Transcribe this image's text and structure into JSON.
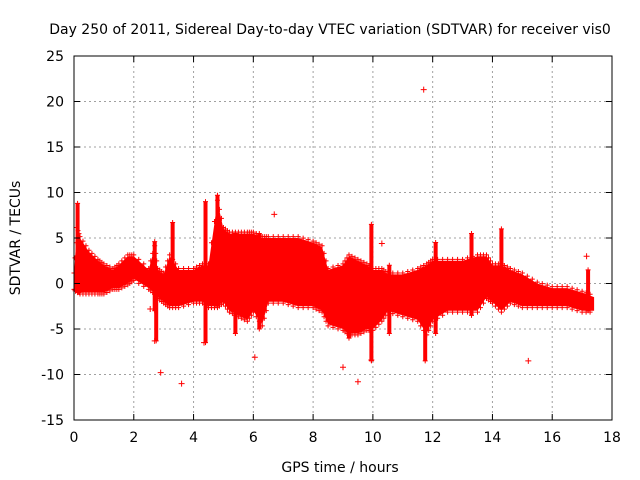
{
  "chart_data": {
    "type": "scatter",
    "title": "Day 250 of 2011, Sidereal Day-to-day VTEC variation (SDTVAR) for receiver vis0",
    "xlabel": "GPS time / hours",
    "ylabel": "SDTVAR / TECUs",
    "xlim": [
      0,
      18
    ],
    "ylim": [
      -15,
      25
    ],
    "x_ticks": [
      0,
      2,
      4,
      6,
      8,
      10,
      12,
      14,
      16,
      18
    ],
    "y_ticks": [
      -15,
      -10,
      -5,
      0,
      5,
      10,
      15,
      20,
      25
    ],
    "x_tick_labels": [
      "0",
      "2",
      "4",
      "6",
      "8",
      "10",
      "12",
      "14",
      "16",
      "18"
    ],
    "y_tick_labels": [
      "-15",
      "-10",
      "-5",
      "0",
      "5",
      "10",
      "15",
      "20",
      "25"
    ],
    "grid": true,
    "marker": "+",
    "color": "#ff0000",
    "band": {
      "x": [
        0.0,
        0.1,
        0.2,
        0.5,
        0.8,
        1.0,
        1.3,
        1.5,
        1.8,
        2.0,
        2.5,
        2.7,
        2.8,
        3.0,
        3.2,
        3.5,
        4.0,
        4.3,
        4.5,
        4.8,
        5.0,
        5.2,
        5.5,
        5.8,
        6.0,
        6.3,
        6.5,
        7.0,
        7.5,
        8.0,
        8.3,
        8.5,
        9.0,
        9.2,
        9.5,
        9.8,
        10.0,
        10.3,
        10.5,
        11.0,
        11.5,
        11.8,
        12.0,
        12.5,
        13.0,
        13.5,
        13.8,
        14.0,
        14.3,
        14.6,
        15.0,
        15.5,
        16.0,
        16.5,
        17.0,
        17.4
      ],
      "upper": [
        1.0,
        6.0,
        5.0,
        3.5,
        2.5,
        2.0,
        1.5,
        2.0,
        3.0,
        3.0,
        1.5,
        4.0,
        1.5,
        1.0,
        3.0,
        1.5,
        1.5,
        2.0,
        2.0,
        9.0,
        6.0,
        5.5,
        5.5,
        5.5,
        5.5,
        5.0,
        5.0,
        5.0,
        5.0,
        4.5,
        4.0,
        1.5,
        2.0,
        3.0,
        2.5,
        2.0,
        1.5,
        1.5,
        1.0,
        1.0,
        1.5,
        2.0,
        2.5,
        2.5,
        2.5,
        3.0,
        3.0,
        2.0,
        2.0,
        1.5,
        1.0,
        0.0,
        -0.5,
        -0.5,
        -1.0,
        -1.5
      ],
      "lower": [
        -0.5,
        -0.5,
        -1.0,
        -1.0,
        -1.0,
        -1.0,
        -0.5,
        -0.5,
        0.0,
        0.5,
        -0.5,
        -1.0,
        -1.5,
        -2.0,
        -2.5,
        -2.5,
        -2.0,
        -2.0,
        -2.5,
        -2.5,
        -2.0,
        -3.0,
        -3.5,
        -4.0,
        -3.0,
        -4.5,
        -2.0,
        -2.0,
        -2.5,
        -2.5,
        -3.0,
        -4.5,
        -5.0,
        -5.5,
        -5.5,
        -5.0,
        -5.0,
        -4.0,
        -3.0,
        -3.5,
        -4.0,
        -5.5,
        -4.0,
        -3.0,
        -3.0,
        -3.0,
        -1.5,
        -2.0,
        -3.0,
        -2.0,
        -2.5,
        -2.5,
        -2.5,
        -2.5,
        -3.0,
        -3.0
      ]
    },
    "spikes": [
      {
        "x": 0.12,
        "low": -1.0,
        "high": 8.8
      },
      {
        "x": 2.7,
        "low": -3.0,
        "high": 4.6
      },
      {
        "x": 2.75,
        "low": -6.3,
        "high": -1.0
      },
      {
        "x": 3.3,
        "low": -1.0,
        "high": 6.7
      },
      {
        "x": 4.4,
        "low": -6.5,
        "high": 9.0
      },
      {
        "x": 4.8,
        "low": -2.5,
        "high": 9.7
      },
      {
        "x": 5.4,
        "low": -5.5,
        "high": 5.5
      },
      {
        "x": 6.2,
        "low": -5.0,
        "high": 5.5
      },
      {
        "x": 9.2,
        "low": -6.0,
        "high": 2.5
      },
      {
        "x": 9.95,
        "low": -8.5,
        "high": 6.5
      },
      {
        "x": 10.55,
        "low": -5.5,
        "high": 2.0
      },
      {
        "x": 11.75,
        "low": -8.5,
        "high": 1.0
      },
      {
        "x": 12.1,
        "low": -5.5,
        "high": 4.5
      },
      {
        "x": 13.3,
        "low": -3.5,
        "high": 5.5
      },
      {
        "x": 14.3,
        "low": -1.5,
        "high": 6.0
      },
      {
        "x": 17.2,
        "low": -3.0,
        "high": 1.5
      }
    ],
    "outliers": [
      {
        "x": 11.7,
        "y": 21.3
      },
      {
        "x": 6.7,
        "y": 7.6
      },
      {
        "x": 10.3,
        "y": 4.4
      },
      {
        "x": 17.15,
        "y": 3.0
      },
      {
        "x": 2.7,
        "y": -6.3
      },
      {
        "x": 2.9,
        "y": -9.8
      },
      {
        "x": 3.6,
        "y": -11.0
      },
      {
        "x": 4.35,
        "y": -6.5
      },
      {
        "x": 6.05,
        "y": -8.1
      },
      {
        "x": 9.0,
        "y": -9.2
      },
      {
        "x": 9.5,
        "y": -10.8
      },
      {
        "x": 9.95,
        "y": -8.4
      },
      {
        "x": 15.2,
        "y": -8.5
      },
      {
        "x": 2.55,
        "y": -2.8
      },
      {
        "x": 0.05,
        "y": -0.8
      }
    ]
  }
}
